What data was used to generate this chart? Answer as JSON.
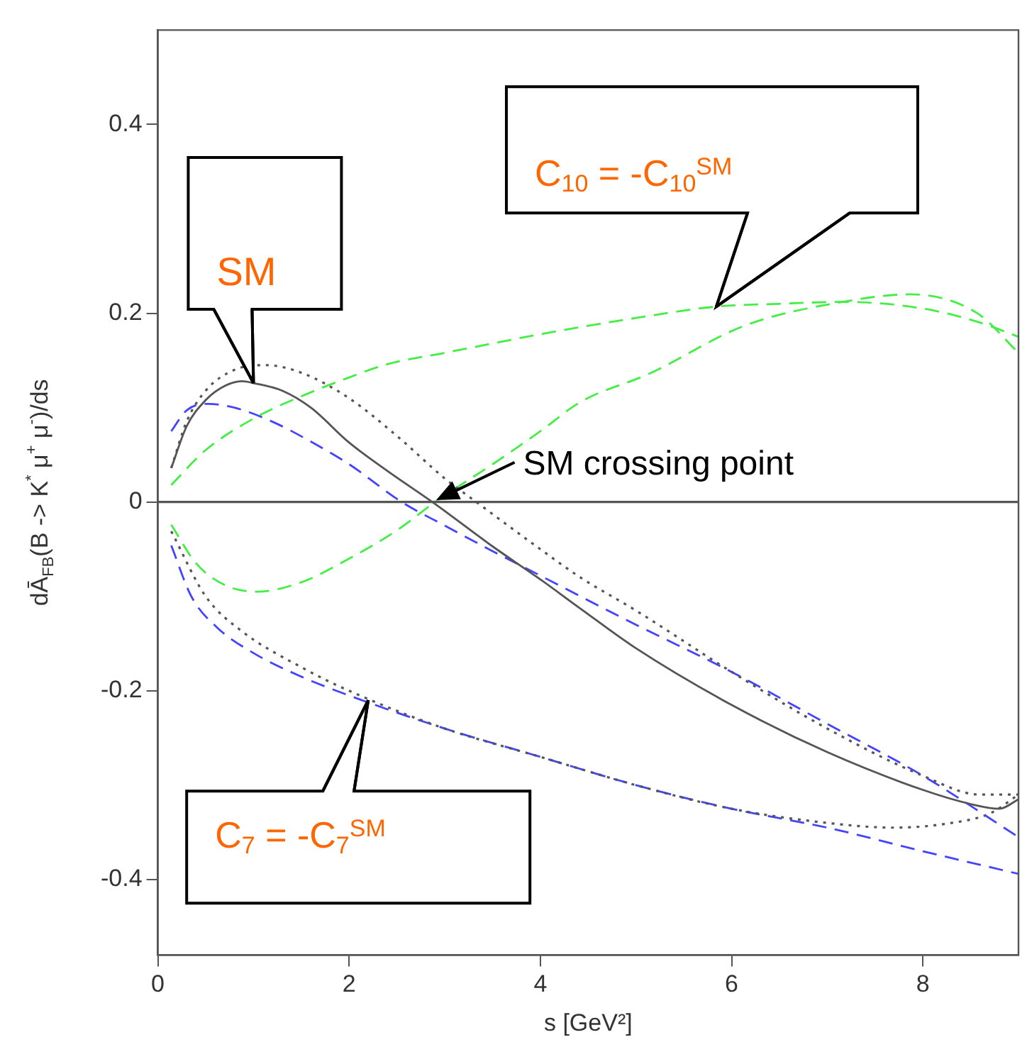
{
  "chart_data": {
    "type": "line",
    "xlabel": "s [GeV²]",
    "ylabel": "dĀ$_{FB}$(B -> K$^{*}$ μ$^{+}$ μ$^{-}$)/ds",
    "xlim": [
      0,
      9
    ],
    "xticks": [
      0,
      2,
      4,
      6,
      8
    ],
    "ylim": [
      -0.48,
      0.5
    ],
    "yticks": [
      -0.4,
      -0.2,
      0,
      0.2,
      0.4
    ],
    "grid": false,
    "legend": false,
    "ref_lines": [
      {
        "axis": "y",
        "value": 0,
        "color": "#555555"
      }
    ],
    "annotations": [
      {
        "text": "SM",
        "x": 1.0,
        "y": 0.126
      },
      {
        "text": "C$_{10}$ = -C$_{10}$$^{SM}$",
        "x": 5.84,
        "y": 0.207
      },
      {
        "text": "SM crossing point",
        "x": 2.87,
        "y": 0
      },
      {
        "text": "C$_{7}$ = -C$_{7}$$^{SM}$",
        "x": 2.2,
        "y": -0.21
      }
    ],
    "series": [
      {
        "color": "#555555",
        "line_style": "solid",
        "x": [
          0.14,
          0.3,
          0.5,
          0.7,
          0.88,
          1.0,
          1.3,
          1.6,
          2.0,
          2.4,
          2.87,
          3.5,
          4.0,
          4.42,
          5.0,
          6.0,
          7.0,
          8.0,
          8.5,
          8.8,
          9.0
        ],
        "values": [
          0.036,
          0.08,
          0.108,
          0.123,
          0.128,
          0.126,
          0.118,
          0.1,
          0.063,
          0.033,
          0.0,
          -0.047,
          -0.082,
          -0.113,
          -0.155,
          -0.215,
          -0.265,
          -0.305,
          -0.32,
          -0.325,
          -0.315
        ]
      },
      {
        "color": "#555555",
        "line_style": "dotted",
        "x": [
          0.14,
          0.3,
          0.5,
          0.8,
          1.13,
          1.5,
          2.0,
          2.5,
          3.0,
          3.33,
          4.0,
          4.42,
          5.0,
          6.0,
          7.0,
          8.0,
          8.6,
          9.0
        ],
        "values": [
          0.036,
          0.085,
          0.118,
          0.14,
          0.145,
          0.137,
          0.11,
          0.07,
          0.025,
          0.0,
          -0.05,
          -0.08,
          -0.115,
          -0.18,
          -0.24,
          -0.29,
          -0.31,
          -0.31
        ]
      },
      {
        "color": "#4444ff",
        "line_style": "dashed",
        "x": [
          0.14,
          0.3,
          0.52,
          0.8,
          1.2,
          1.6,
          2.0,
          2.55,
          3.0,
          3.5,
          4.0,
          4.42,
          5.0,
          6.0,
          7.0,
          8.0,
          9.0
        ],
        "values": [
          0.075,
          0.097,
          0.104,
          0.1,
          0.085,
          0.064,
          0.04,
          0.0,
          -0.025,
          -0.052,
          -0.078,
          -0.1,
          -0.13,
          -0.18,
          -0.235,
          -0.29,
          -0.355
        ]
      },
      {
        "color": "#44ee44",
        "line_style": "dashed",
        "x": [
          0.14,
          0.5,
          1.03,
          1.5,
          2.0,
          2.4,
          3.0,
          3.5,
          4.12,
          5.0,
          5.84,
          6.5,
          7.16,
          8.0,
          8.6,
          9.0
        ],
        "values": [
          0.018,
          0.055,
          0.09,
          0.112,
          0.132,
          0.146,
          0.158,
          0.168,
          0.18,
          0.195,
          0.207,
          0.21,
          0.212,
          0.205,
          0.19,
          0.175
        ]
      },
      {
        "color": "#44ee44",
        "line_style": "dashed",
        "x": [
          0.14,
          0.4,
          0.7,
          1.03,
          1.5,
          2.0,
          2.5,
          2.9,
          3.5,
          4.0,
          4.42,
          5.14,
          6.14,
          7.16,
          7.87,
          8.57,
          9.0
        ],
        "values": [
          -0.024,
          -0.065,
          -0.088,
          -0.095,
          -0.085,
          -0.06,
          -0.03,
          0.0,
          0.04,
          0.075,
          0.106,
          0.136,
          0.187,
          0.212,
          0.22,
          0.2,
          0.158
        ]
      },
      {
        "color": "#555555",
        "line_style": "dotted",
        "x": [
          0.14,
          0.5,
          0.88,
          1.5,
          2.0,
          3.0,
          4.0,
          5.0,
          6.0,
          7.0,
          7.7,
          8.3,
          8.7,
          9.0
        ],
        "values": [
          -0.031,
          -0.1,
          -0.137,
          -0.175,
          -0.2,
          -0.24,
          -0.27,
          -0.3,
          -0.325,
          -0.34,
          -0.345,
          -0.34,
          -0.33,
          -0.31
        ]
      },
      {
        "color": "#4444ff",
        "line_style": "dashed",
        "x": [
          0.14,
          0.35,
          0.62,
          1.0,
          1.5,
          2.0,
          3.0,
          4.0,
          5.0,
          6.0,
          7.0,
          8.0,
          9.0
        ],
        "values": [
          -0.046,
          -0.1,
          -0.133,
          -0.16,
          -0.185,
          -0.205,
          -0.24,
          -0.27,
          -0.3,
          -0.325,
          -0.345,
          -0.37,
          -0.394
        ]
      }
    ]
  }
}
